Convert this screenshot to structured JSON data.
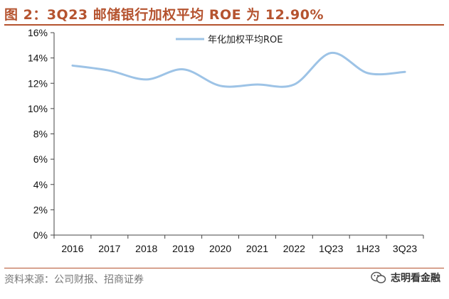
{
  "title": "图 2：3Q23 邮储银行加权平均 ROE 为 12.90%",
  "source": "资料来源：公司财报、招商证券",
  "brand": "志明看金融",
  "colors": {
    "accent": "#b5532f",
    "line": "#9dc3e6",
    "axis": "#444444"
  },
  "chart_data": {
    "type": "line",
    "title": "3Q23 邮储银行加权平均 ROE 为 12.90%",
    "xlabel": "",
    "ylabel": "",
    "ylim": [
      0,
      16
    ],
    "yticks": [
      "0%",
      "2%",
      "4%",
      "6%",
      "8%",
      "10%",
      "12%",
      "14%",
      "16%"
    ],
    "categories": [
      "2016",
      "2017",
      "2018",
      "2019",
      "2020",
      "2021",
      "2022",
      "1Q23",
      "1H23",
      "3Q23"
    ],
    "series": [
      {
        "name": "年化加权平均ROE",
        "values": [
          13.4,
          13.0,
          12.3,
          13.1,
          11.8,
          11.9,
          11.9,
          14.4,
          12.8,
          12.9
        ]
      }
    ],
    "legend": "top-center",
    "grid": false
  }
}
